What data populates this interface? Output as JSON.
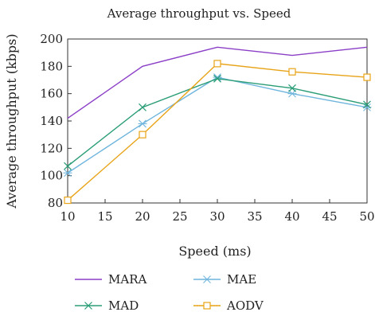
{
  "chart_data": {
    "type": "line",
    "title": "Average throughput vs. Speed",
    "xlabel": "Speed (ms)",
    "ylabel": "Average throughput (kbps)",
    "x": [
      10,
      20,
      30,
      40,
      50
    ],
    "xlim": [
      10,
      50
    ],
    "ylim": [
      80,
      200
    ],
    "xticks": [
      "10",
      "15",
      "20",
      "25",
      "30",
      "35",
      "40",
      "45",
      "50"
    ],
    "yticks": [
      "80",
      "100",
      "120",
      "140",
      "160",
      "180",
      "200"
    ],
    "grid": false,
    "legend_position": "bottom",
    "series": [
      {
        "name": "MARA",
        "values": [
          142,
          180,
          194,
          188,
          194
        ],
        "color": "#8b3fc7",
        "marker": "none"
      },
      {
        "name": "MAE",
        "values": [
          102,
          138,
          172,
          160,
          150
        ],
        "color": "#6fb5dd",
        "marker": "asterisk"
      },
      {
        "name": "MAD",
        "values": [
          107,
          150,
          171,
          164,
          152
        ],
        "color": "#2a9d76",
        "marker": "x"
      },
      {
        "name": "AODV",
        "values": [
          82,
          130,
          182,
          176,
          172
        ],
        "color": "#e8a317",
        "marker": "square"
      }
    ]
  }
}
